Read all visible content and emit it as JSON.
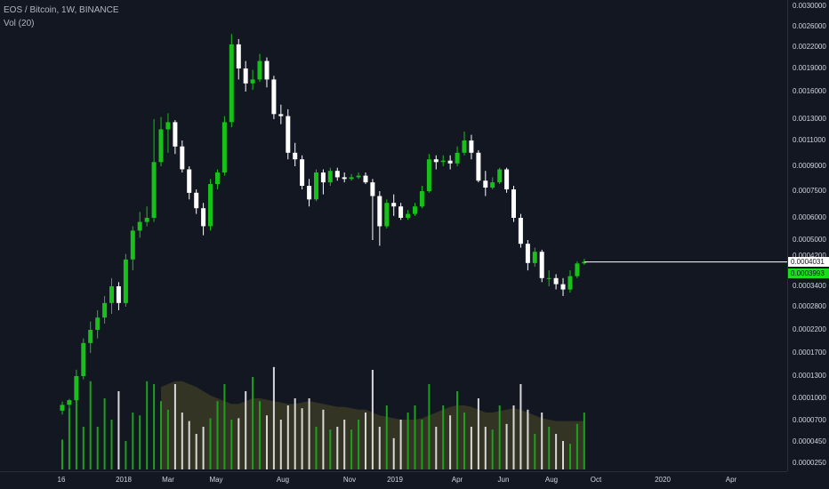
{
  "legend": {
    "symbol": "EOS / Bitcoin, 1W, BINANCE",
    "volume": "Vol (20)"
  },
  "colors": {
    "background": "#131722",
    "up": "#18c01a",
    "down": "#ffffff",
    "volume_up": "#1ca01e",
    "volume_down": "#d8d8d8",
    "volume_ma_fill": "#3b3a26",
    "last_price_label_bg": "#ffffff",
    "last_price_label_text": "#131722",
    "prev_close_label_bg": "#18e01a",
    "prev_close_label_text": "#131722"
  },
  "price_scale": {
    "ticks": [
      "0.0030000",
      "0.0026000",
      "0.0022000",
      "0.0019000",
      "0.0016000",
      "0.0013000",
      "0.0011000",
      "0.0009000",
      "0.0007500",
      "0.0006000",
      "0.0005000",
      "0.0004200",
      "0.0003400",
      "0.0002800",
      "0.0002200",
      "0.0001700",
      "0.0001300",
      "0.0001000",
      "0.0000700",
      "0.0000450",
      "0.0000250"
    ],
    "last_price": "0.0004031",
    "prev_close": "0.0003993"
  },
  "time_scale": {
    "labels": [
      "16",
      "2018",
      "Mar",
      "May",
      "Aug",
      "Nov",
      "2019",
      "Apr",
      "Jun",
      "Aug",
      "Oct",
      "2020",
      "Apr"
    ]
  },
  "chart_data": {
    "type": "candlestick",
    "title": "EOS / Bitcoin, 1W, BINANCE",
    "interval": "1W",
    "exchange": "BINANCE",
    "y_scale": "log",
    "ylim": [
      2.5e-05,
      0.003
    ],
    "candles": [
      [
        8.2e-05,
        9e-05,
        7.7e-05,
        9.5e-05
      ],
      [
        9e-05,
        9.7e-05,
        8.5e-05,
        9.9e-05
      ],
      [
        9.7e-05,
        0.00013,
        9.5e-05,
        0.00014
      ],
      [
        0.00013,
        0.00019,
        0.000125,
        0.0002
      ],
      [
        0.00019,
        0.00022,
        0.00017,
        0.00024
      ],
      [
        0.00022,
        0.00025,
        0.0002,
        0.00027
      ],
      [
        0.00025,
        0.00029,
        0.000235,
        0.00031
      ],
      [
        0.00029,
        0.00034,
        0.00026,
        0.00036
      ],
      [
        0.00034,
        0.00029,
        0.00027,
        0.00035
      ],
      [
        0.00029,
        0.00041,
        0.00028,
        0.00043
      ],
      [
        0.00041,
        0.00054,
        0.00038,
        0.00056
      ],
      [
        0.00054,
        0.00058,
        0.00051,
        0.00063
      ],
      [
        0.00058,
        0.0006,
        0.00056,
        0.00066
      ],
      [
        0.0006,
        0.00093,
        0.00058,
        0.0013
      ],
      [
        0.00093,
        0.0012,
        0.0009,
        0.00132
      ],
      [
        0.0012,
        0.00127,
        0.001,
        0.00136
      ],
      [
        0.00127,
        0.00105,
        0.00099,
        0.00129
      ],
      [
        0.00105,
        0.00088,
        0.00086,
        0.0011
      ],
      [
        0.00088,
        0.00074,
        0.0007,
        0.0009
      ],
      [
        0.00074,
        0.00065,
        0.00062,
        0.00076
      ],
      [
        0.00065,
        0.00056,
        0.00052,
        0.00068
      ],
      [
        0.00056,
        0.00079,
        0.00054,
        0.00082
      ],
      [
        0.00079,
        0.00086,
        0.00076,
        0.00088
      ],
      [
        0.00086,
        0.00127,
        0.00084,
        0.00133
      ],
      [
        0.00127,
        0.00225,
        0.00122,
        0.00245
      ],
      [
        0.00225,
        0.0019,
        0.00175,
        0.00235
      ],
      [
        0.0019,
        0.0017,
        0.0016,
        0.002
      ],
      [
        0.0017,
        0.00175,
        0.00162,
        0.00188
      ],
      [
        0.00175,
        0.002,
        0.00172,
        0.0021
      ],
      [
        0.002,
        0.00175,
        0.00165,
        0.00205
      ],
      [
        0.00175,
        0.00135,
        0.0013,
        0.0018
      ],
      [
        0.00135,
        0.00133,
        0.00125,
        0.00145
      ],
      [
        0.00133,
        0.001,
        0.00095,
        0.0014
      ],
      [
        0.001,
        0.00095,
        0.0009,
        0.00108
      ],
      [
        0.00095,
        0.00078,
        0.00076,
        0.00098
      ],
      [
        0.00078,
        0.0007,
        0.00066,
        0.00082
      ],
      [
        0.0007,
        0.00086,
        0.00069,
        0.00088
      ],
      [
        0.00086,
        0.0008,
        0.00073,
        0.00088
      ],
      [
        0.0008,
        0.00087,
        0.00078,
        0.00089
      ],
      [
        0.00087,
        0.00083,
        0.00081,
        0.00089
      ],
      [
        0.00083,
        0.00082,
        0.0008,
        0.00086
      ],
      [
        0.00082,
        0.00083,
        0.00081,
        0.00085
      ],
      [
        0.00083,
        0.00084,
        0.00082,
        0.00086
      ],
      [
        0.00084,
        0.0008,
        0.00079,
        0.00086
      ],
      [
        0.0008,
        0.00072,
        0.0005,
        0.00082
      ],
      [
        0.00072,
        0.00056,
        0.00047,
        0.00075
      ],
      [
        0.00056,
        0.00068,
        0.00055,
        0.0007
      ],
      [
        0.00068,
        0.00066,
        0.00061,
        0.00073
      ],
      [
        0.00066,
        0.0006,
        0.00059,
        0.00068
      ],
      [
        0.0006,
        0.00062,
        0.00059,
        0.00064
      ],
      [
        0.00062,
        0.00066,
        0.00061,
        0.00068
      ],
      [
        0.00066,
        0.00075,
        0.00065,
        0.00078
      ],
      [
        0.00075,
        0.00095,
        0.00074,
        0.00099
      ],
      [
        0.00095,
        0.00093,
        0.00088,
        0.00098
      ],
      [
        0.00093,
        0.00094,
        0.0009,
        0.00098
      ],
      [
        0.00094,
        0.00092,
        0.00088,
        0.00098
      ],
      [
        0.00092,
        0.001,
        0.0009,
        0.00105
      ],
      [
        0.001,
        0.0011,
        0.00098,
        0.00118
      ],
      [
        0.0011,
        0.001,
        0.00095,
        0.00115
      ],
      [
        0.001,
        0.00081,
        0.0008,
        0.00102
      ],
      [
        0.00081,
        0.00077,
        0.00072,
        0.00087
      ],
      [
        0.00077,
        0.0008,
        0.00076,
        0.00083
      ],
      [
        0.0008,
        0.00088,
        0.00079,
        0.00089
      ],
      [
        0.00088,
        0.00076,
        0.00074,
        0.00089
      ],
      [
        0.00076,
        0.0006,
        0.00058,
        0.00078
      ],
      [
        0.0006,
        0.00048,
        0.00046,
        0.00062
      ],
      [
        0.00048,
        0.0004,
        0.00038,
        0.0005
      ],
      [
        0.0004,
        0.00044,
        0.00039,
        0.00046
      ],
      [
        0.00044,
        0.00036,
        0.00035,
        0.00045
      ],
      [
        0.00036,
        0.00036,
        0.00034,
        0.00038
      ],
      [
        0.00036,
        0.000345,
        0.00033,
        0.00037
      ],
      [
        0.000345,
        0.00033,
        0.00031,
        0.00036
      ],
      [
        0.00033,
        0.000365,
        0.00032,
        0.00038
      ],
      [
        0.000365,
        0.000399,
        0.00036,
        0.000405
      ],
      [
        0.000399,
        0.000403,
        0.000395,
        0.000412
      ]
    ],
    "volume": [
      21,
      43,
      55,
      30,
      62,
      30,
      50,
      35,
      55,
      20,
      40,
      38,
      62,
      60,
      48,
      42,
      60,
      40,
      34,
      25,
      30,
      36,
      48,
      60,
      35,
      36,
      55,
      65,
      48,
      38,
      72,
      35,
      45,
      50,
      43,
      50,
      30,
      42,
      28,
      30,
      35,
      28,
      35,
      40,
      70,
      30,
      45,
      22,
      35,
      40,
      45,
      35,
      60,
      30,
      45,
      38,
      55,
      40,
      30,
      50,
      30,
      28,
      45,
      32,
      45,
      60,
      42,
      25,
      40,
      30,
      25,
      20,
      18,
      32,
      40
    ],
    "volume_ma": [
      35,
      35,
      36,
      36,
      37,
      38,
      40,
      42,
      44,
      46,
      48,
      50,
      52,
      55,
      58,
      60,
      62,
      62,
      60,
      58,
      55,
      52,
      50,
      48,
      46,
      46,
      48,
      50,
      50,
      49,
      48,
      47,
      46,
      46,
      47,
      48,
      47,
      46,
      45,
      44,
      44,
      43,
      42,
      42,
      40,
      38,
      37,
      36,
      35,
      35,
      35,
      36,
      38,
      40,
      42,
      44,
      45,
      45,
      44,
      42,
      40,
      40,
      41,
      42,
      43,
      42,
      40,
      38,
      36,
      35,
      34,
      34,
      34,
      34,
      34
    ],
    "volume_ma_visible_from": 14
  }
}
